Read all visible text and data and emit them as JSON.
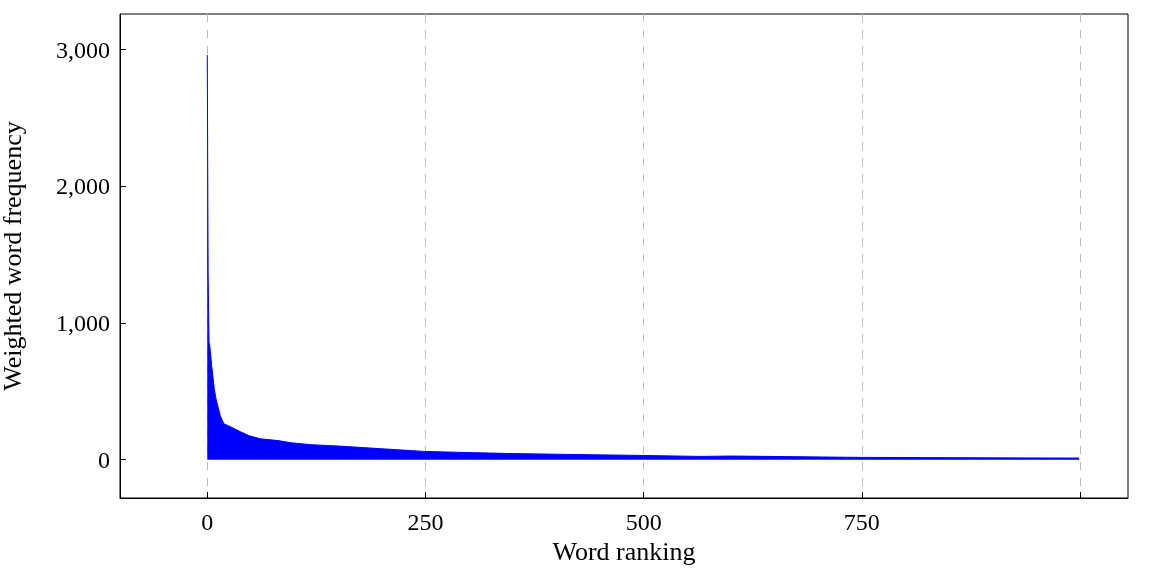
{
  "chart_data": {
    "type": "area",
    "xlabel": "Word ranking",
    "ylabel": "Weighted word frequency",
    "xlim": [
      -100,
      1055
    ],
    "ylim": [
      -280,
      3260
    ],
    "xticks": [
      0,
      250,
      500,
      750,
      {
        "value": 1000,
        "label": null
      }
    ],
    "yticks": [
      0,
      {
        "value": 1000,
        "label": "1,000"
      },
      {
        "value": 2000,
        "label": "2,000"
      },
      {
        "value": 3000,
        "label": "3,000"
      }
    ],
    "grid": "x",
    "marker": "none",
    "series": [
      {
        "color": "#0000ff",
        "x": [
          0,
          1,
          2,
          3,
          5,
          8,
          10,
          12,
          15,
          19,
          27,
          38,
          48,
          61,
          81,
          96,
          119,
          150,
          200,
          248,
          300,
          350,
          400,
          500,
          565,
          600,
          750,
          999
        ],
        "values": [
          2960,
          1350,
          860,
          825,
          690,
          520,
          445,
          395,
          320,
          263,
          240,
          205,
          175,
          153,
          140,
          124,
          110,
          100,
          80,
          61,
          52,
          45,
          40,
          31,
          24,
          27,
          17,
          12
        ]
      }
    ]
  }
}
